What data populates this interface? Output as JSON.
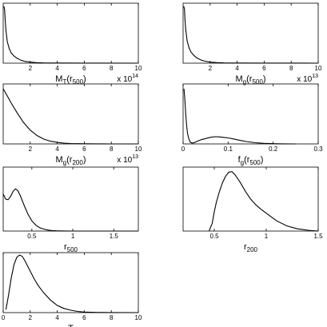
{
  "chart_data": [
    {
      "id": "mt",
      "type": "line",
      "xlabel": {
        "main": "M",
        "sub": "T",
        "suffix": "(r",
        "sub2": "500",
        "close": ")"
      },
      "xlim": [
        0,
        10
      ],
      "ylim": [
        0,
        1
      ],
      "xticks": [
        2,
        4,
        6,
        8,
        10
      ],
      "xtick_labels": [
        "2",
        "4",
        "6",
        "8",
        "10"
      ],
      "multiplier": {
        "base": "x 10",
        "exp": "14"
      },
      "x": [
        0.05,
        0.1,
        0.15,
        0.2,
        0.3,
        0.45,
        0.6,
        0.8,
        1.0,
        1.3,
        1.6,
        2.0,
        2.5,
        3.0,
        4.0,
        6.0,
        10.0
      ],
      "y": [
        0.95,
        0.9,
        0.72,
        0.55,
        0.36,
        0.24,
        0.17,
        0.12,
        0.085,
        0.05,
        0.03,
        0.017,
        0.008,
        0.004,
        0.002,
        0.001,
        0.0
      ]
    },
    {
      "id": "mg500",
      "type": "line",
      "xlabel": {
        "main": "M",
        "sub": "g",
        "suffix": "(r",
        "sub2": "500",
        "close": ")"
      },
      "xlim": [
        0,
        10
      ],
      "ylim": [
        0,
        1
      ],
      "xticks": [
        2,
        4,
        6,
        8,
        10
      ],
      "xtick_labels": [
        "2",
        "4",
        "6",
        "8",
        "10"
      ],
      "multiplier": {
        "base": "x 10",
        "exp": "13"
      },
      "x": [
        0.05,
        0.1,
        0.15,
        0.2,
        0.3,
        0.45,
        0.6,
        0.8,
        1.0,
        1.3,
        1.6,
        2.0,
        2.5,
        3.0,
        4.0,
        6.0,
        10.0
      ],
      "y": [
        0.95,
        0.9,
        0.7,
        0.55,
        0.37,
        0.25,
        0.18,
        0.13,
        0.09,
        0.055,
        0.033,
        0.018,
        0.009,
        0.004,
        0.002,
        0.001,
        0.0
      ]
    },
    {
      "id": "mg200",
      "type": "line",
      "xlabel": {
        "main": "M",
        "sub": "g",
        "suffix": "(r",
        "sub2": "200",
        "close": ")"
      },
      "xlim": [
        0,
        10
      ],
      "ylim": [
        0,
        1
      ],
      "xticks": [
        2,
        4,
        6,
        8,
        10
      ],
      "xtick_labels": [
        "2",
        "4",
        "6",
        "8",
        "10"
      ],
      "multiplier": {
        "base": "x 10",
        "exp": "13"
      },
      "x": [
        0.0,
        0.3,
        0.6,
        1.0,
        1.5,
        2.0,
        2.5,
        3.0,
        3.5,
        4.0,
        4.5,
        5.0,
        6.0,
        7.0,
        8.0,
        10.0
      ],
      "y": [
        0.92,
        0.8,
        0.68,
        0.53,
        0.36,
        0.23,
        0.14,
        0.08,
        0.045,
        0.025,
        0.013,
        0.007,
        0.003,
        0.001,
        0.0,
        0.0
      ]
    },
    {
      "id": "fg",
      "type": "line",
      "xlabel": {
        "main": "f",
        "sub": "g",
        "suffix": "(r",
        "sub2": "500",
        "close": ")"
      },
      "xlim": [
        0,
        0.3
      ],
      "ylim": [
        0,
        1
      ],
      "xticks": [
        0,
        0.1,
        0.2,
        0.3
      ],
      "xtick_labels": [
        "0",
        "0.1",
        "0.2",
        "0.3"
      ],
      "x": [
        0.002,
        0.004,
        0.006,
        0.008,
        0.01,
        0.013,
        0.016,
        0.02,
        0.025,
        0.03,
        0.04,
        0.05,
        0.06,
        0.07,
        0.08,
        0.09,
        0.1,
        0.11,
        0.12,
        0.13,
        0.14,
        0.16,
        0.18,
        0.2,
        0.22,
        0.25
      ],
      "y": [
        0.92,
        0.72,
        0.48,
        0.3,
        0.17,
        0.08,
        0.03,
        0.015,
        0.02,
        0.04,
        0.07,
        0.09,
        0.11,
        0.12,
        0.118,
        0.11,
        0.1,
        0.085,
        0.07,
        0.055,
        0.04,
        0.02,
        0.01,
        0.004,
        0.001,
        0.0
      ]
    },
    {
      "id": "r500",
      "type": "line",
      "xlabel": {
        "main": "r",
        "sub": "500"
      },
      "xlim": [
        0.15,
        1.8
      ],
      "ylim": [
        0,
        1
      ],
      "xticks": [
        0.5,
        1,
        1.5
      ],
      "xtick_labels": [
        "0.5",
        "1",
        "1.5"
      ],
      "x": [
        0.15,
        0.18,
        0.21,
        0.24,
        0.27,
        0.3,
        0.33,
        0.36,
        0.4,
        0.45,
        0.5,
        0.55,
        0.6,
        0.65,
        0.7,
        0.75,
        0.8,
        0.9,
        1.0,
        1.2,
        1.8
      ],
      "y": [
        0.58,
        0.5,
        0.49,
        0.54,
        0.62,
        0.66,
        0.63,
        0.55,
        0.42,
        0.27,
        0.16,
        0.09,
        0.05,
        0.03,
        0.015,
        0.008,
        0.004,
        0.001,
        0.0,
        0.0,
        0.0
      ]
    },
    {
      "id": "r200",
      "type": "line",
      "xlabel": {
        "main": "r",
        "sub": "200"
      },
      "xlim": [
        0.2,
        1.5
      ],
      "ylim": [
        0,
        1
      ],
      "xticks": [
        0.5,
        1,
        1.5
      ],
      "xtick_labels": [
        "0.5",
        "1",
        "1.5"
      ],
      "x": [
        0.45,
        0.48,
        0.5,
        0.52,
        0.55,
        0.58,
        0.61,
        0.64,
        0.67,
        0.7,
        0.75,
        0.8,
        0.85,
        0.9,
        0.95,
        1.0,
        1.05,
        1.1,
        1.2,
        1.3,
        1.4,
        1.5
      ],
      "y": [
        0.0,
        0.12,
        0.3,
        0.45,
        0.62,
        0.76,
        0.86,
        0.92,
        0.93,
        0.88,
        0.76,
        0.62,
        0.5,
        0.41,
        0.34,
        0.28,
        0.22,
        0.16,
        0.08,
        0.035,
        0.012,
        0.0
      ]
    },
    {
      "id": "temp",
      "type": "line",
      "xlabel": {
        "main": "T"
      },
      "xlim": [
        0,
        10
      ],
      "ylim": [
        0,
        1
      ],
      "xticks": [
        0,
        2,
        4,
        6,
        8,
        10
      ],
      "xtick_labels": [
        "0",
        "2",
        "4",
        "6",
        "8",
        "10"
      ],
      "x": [
        0.2,
        0.4,
        0.6,
        0.8,
        1.0,
        1.2,
        1.4,
        1.6,
        1.8,
        2.0,
        2.3,
        2.6,
        3.0,
        3.5,
        4.0,
        4.5,
        5.0,
        5.5,
        6.0,
        7.0,
        8.0,
        10.0
      ],
      "y": [
        0.05,
        0.3,
        0.58,
        0.8,
        0.92,
        0.96,
        0.94,
        0.87,
        0.78,
        0.69,
        0.56,
        0.45,
        0.33,
        0.21,
        0.12,
        0.07,
        0.04,
        0.02,
        0.01,
        0.003,
        0.001,
        0.0
      ]
    }
  ]
}
